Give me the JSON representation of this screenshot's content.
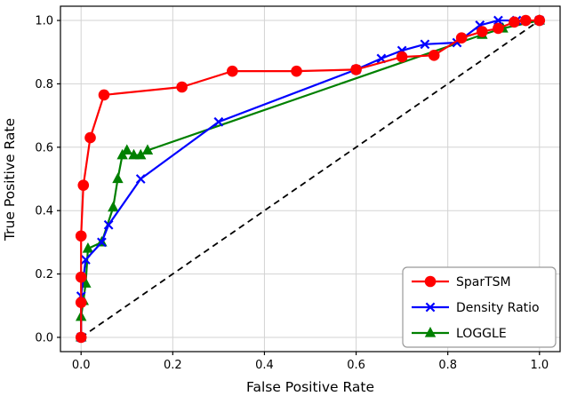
{
  "figure": {
    "background": "#ffffff",
    "border_color": "#000000",
    "grid_color": "#d3d3d3"
  },
  "chart_data": {
    "type": "line",
    "title": "",
    "xlabel": "False Positive Rate",
    "ylabel": "True Positive Rate",
    "xlim": [
      -0.045,
      1.045
    ],
    "ylim": [
      -0.045,
      1.045
    ],
    "xticks": [
      0.0,
      0.2,
      0.4,
      0.6,
      0.8,
      1.0
    ],
    "yticks": [
      0.0,
      0.2,
      0.4,
      0.6,
      0.8,
      1.0
    ],
    "grid": true,
    "legend_position": "lower right",
    "series": [
      {
        "name": "SparTSM",
        "color": "#ff0000",
        "marker": "circle",
        "points": [
          [
            0.0,
            0.0
          ],
          [
            0.0,
            0.11
          ],
          [
            0.0,
            0.19
          ],
          [
            0.0,
            0.32
          ],
          [
            0.005,
            0.48
          ],
          [
            0.02,
            0.63
          ],
          [
            0.05,
            0.765
          ],
          [
            0.22,
            0.79
          ],
          [
            0.33,
            0.84
          ],
          [
            0.47,
            0.84
          ],
          [
            0.6,
            0.845
          ],
          [
            0.7,
            0.885
          ],
          [
            0.77,
            0.89
          ],
          [
            0.83,
            0.945
          ],
          [
            0.875,
            0.965
          ],
          [
            0.91,
            0.975
          ],
          [
            0.945,
            0.995
          ],
          [
            0.97,
            1.0
          ],
          [
            1.0,
            1.0
          ]
        ]
      },
      {
        "name": "Density Ratio",
        "color": "#0000ff",
        "marker": "x",
        "points": [
          [
            0.0,
            0.0
          ],
          [
            0.0,
            0.13
          ],
          [
            0.01,
            0.245
          ],
          [
            0.045,
            0.3
          ],
          [
            0.06,
            0.355
          ],
          [
            0.13,
            0.5
          ],
          [
            0.3,
            0.68
          ],
          [
            0.6,
            0.845
          ],
          [
            0.655,
            0.88
          ],
          [
            0.7,
            0.905
          ],
          [
            0.75,
            0.925
          ],
          [
            0.82,
            0.93
          ],
          [
            0.87,
            0.985
          ],
          [
            0.91,
            1.0
          ],
          [
            0.95,
            1.0
          ],
          [
            1.0,
            1.0
          ]
        ]
      },
      {
        "name": "LOGGLE",
        "color": "#008000",
        "marker": "triangle",
        "points": [
          [
            0.0,
            0.0
          ],
          [
            0.0,
            0.065
          ],
          [
            0.005,
            0.115
          ],
          [
            0.01,
            0.17
          ],
          [
            0.015,
            0.28
          ],
          [
            0.045,
            0.3
          ],
          [
            0.07,
            0.41
          ],
          [
            0.08,
            0.5
          ],
          [
            0.09,
            0.575
          ],
          [
            0.1,
            0.59
          ],
          [
            0.115,
            0.575
          ],
          [
            0.13,
            0.575
          ],
          [
            0.145,
            0.59
          ],
          [
            0.875,
            0.955
          ],
          [
            0.92,
            0.975
          ],
          [
            1.0,
            1.0
          ]
        ]
      }
    ],
    "reference_line": {
      "name": "chance-diagonal",
      "color": "#000000",
      "style": "dashed",
      "points": [
        [
          0.0,
          0.0
        ],
        [
          1.0,
          1.0
        ]
      ]
    }
  }
}
